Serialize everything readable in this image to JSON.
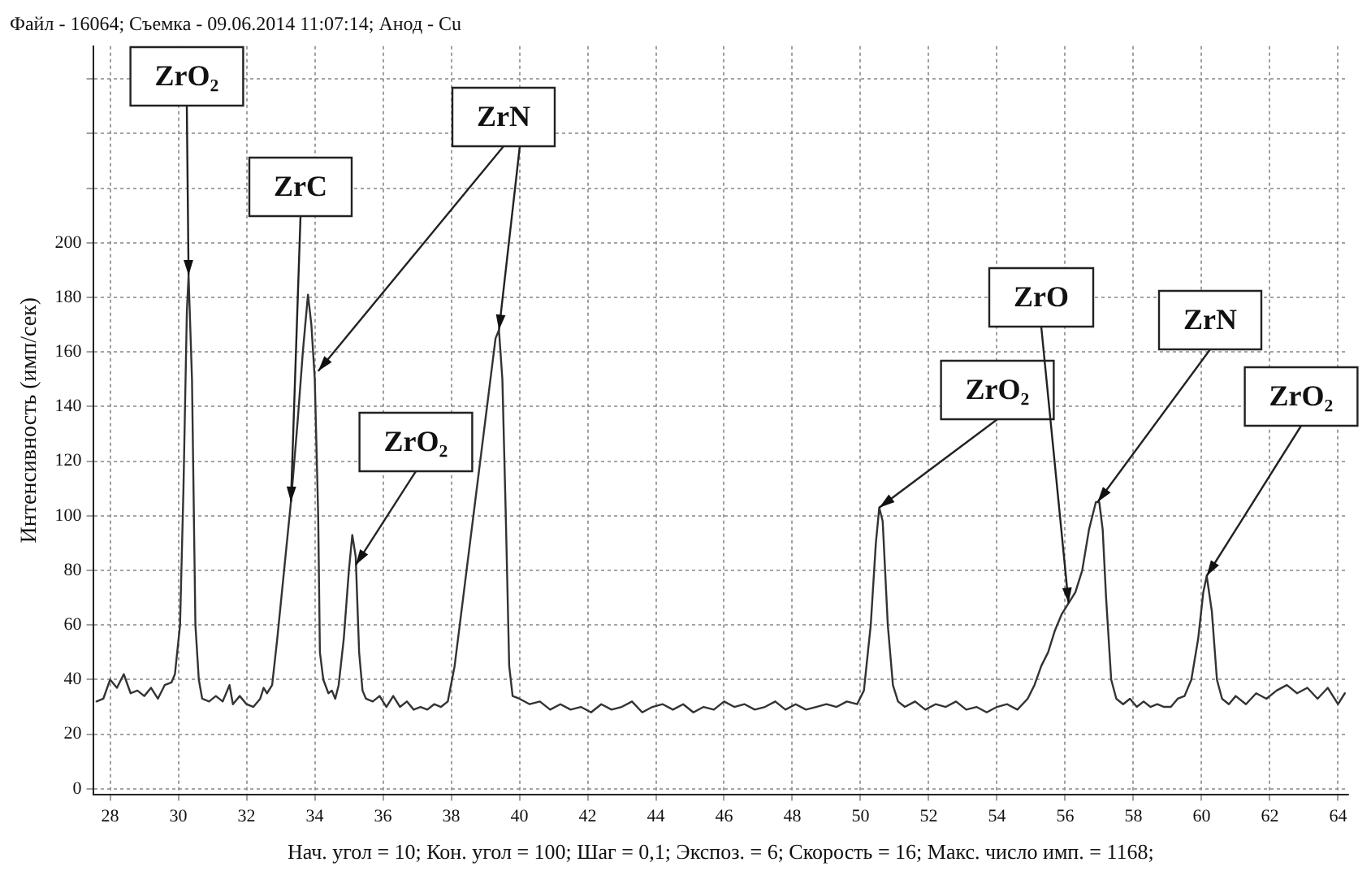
{
  "chart_data": {
    "type": "line",
    "title": "Файл - 16064; Съемка - 09.06.2014 11:07:14; Анод - Cu",
    "ylabel": "Интенсивность (имп/сек)",
    "x": [
      27.6,
      27.8,
      28.0,
      28.2,
      28.4,
      28.6,
      28.8,
      29.0,
      29.2,
      29.4,
      29.6,
      29.8,
      29.9,
      30.05,
      30.15,
      30.25,
      30.3,
      30.4,
      30.5,
      30.6,
      30.7,
      30.9,
      31.1,
      31.3,
      31.5,
      31.6,
      31.8,
      32.0,
      32.2,
      32.4,
      32.5,
      32.6,
      32.75,
      32.9,
      33.1,
      33.3,
      33.5,
      33.65,
      33.8,
      33.9,
      34.0,
      34.1,
      34.15,
      34.25,
      34.4,
      34.5,
      34.6,
      34.7,
      34.85,
      35.0,
      35.1,
      35.2,
      35.3,
      35.4,
      35.5,
      35.7,
      35.9,
      36.1,
      36.3,
      36.5,
      36.7,
      36.9,
      37.1,
      37.3,
      37.5,
      37.7,
      37.9,
      38.1,
      38.4,
      38.7,
      38.9,
      39.1,
      39.3,
      39.4,
      39.5,
      39.6,
      39.7,
      39.8,
      40.0,
      40.3,
      40.6,
      40.9,
      41.2,
      41.5,
      41.8,
      42.1,
      42.4,
      42.7,
      43.0,
      43.3,
      43.6,
      43.9,
      44.2,
      44.5,
      44.8,
      45.1,
      45.4,
      45.7,
      46.0,
      46.3,
      46.6,
      46.9,
      47.2,
      47.5,
      47.8,
      48.1,
      48.4,
      48.7,
      49.0,
      49.3,
      49.6,
      49.9,
      50.1,
      50.3,
      50.45,
      50.55,
      50.65,
      50.8,
      50.95,
      51.1,
      51.3,
      51.6,
      51.9,
      52.2,
      52.5,
      52.8,
      53.1,
      53.4,
      53.7,
      54.0,
      54.3,
      54.6,
      54.9,
      55.1,
      55.3,
      55.5,
      55.7,
      55.9,
      56.1,
      56.3,
      56.5,
      56.7,
      56.9,
      57.0,
      57.1,
      57.2,
      57.35,
      57.5,
      57.7,
      57.9,
      58.1,
      58.3,
      58.5,
      58.7,
      58.9,
      59.1,
      59.3,
      59.5,
      59.7,
      59.9,
      60.05,
      60.15,
      60.3,
      60.45,
      60.6,
      60.8,
      61.0,
      61.3,
      61.6,
      61.9,
      62.2,
      62.5,
      62.8,
      63.1,
      63.4,
      63.7,
      64.0,
      64.2
    ],
    "series": [
      {
        "color": "#333333",
        "values": [
          32,
          33,
          40,
          37,
          42,
          35,
          36,
          34,
          37,
          33,
          38,
          39,
          42,
          60,
          110,
          175,
          188,
          150,
          60,
          40,
          33,
          32,
          34,
          32,
          38,
          31,
          34,
          31,
          30,
          33,
          37,
          35,
          38,
          55,
          80,
          105,
          135,
          160,
          181,
          170,
          150,
          100,
          50,
          40,
          35,
          36,
          33,
          38,
          55,
          80,
          93,
          85,
          50,
          36,
          33,
          32,
          34,
          30,
          34,
          30,
          32,
          29,
          30,
          29,
          31,
          30,
          32,
          45,
          75,
          105,
          125,
          145,
          165,
          168,
          150,
          100,
          45,
          34,
          33,
          31,
          32,
          29,
          31,
          29,
          30,
          28,
          31,
          29,
          30,
          32,
          28,
          30,
          31,
          29,
          31,
          28,
          30,
          29,
          32,
          30,
          31,
          29,
          30,
          32,
          29,
          31,
          29,
          30,
          31,
          30,
          32,
          31,
          36,
          60,
          90,
          103,
          98,
          60,
          38,
          32,
          30,
          32,
          29,
          31,
          30,
          32,
          29,
          30,
          28,
          30,
          31,
          29,
          33,
          38,
          45,
          50,
          58,
          64,
          68,
          72,
          80,
          95,
          105,
          105,
          95,
          70,
          40,
          33,
          31,
          33,
          30,
          32,
          30,
          31,
          30,
          30,
          33,
          34,
          40,
          55,
          72,
          78,
          65,
          40,
          33,
          31,
          34,
          31,
          35,
          33,
          36,
          38,
          35,
          37,
          33,
          37,
          31,
          35
        ]
      }
    ],
    "xlim": [
      27.5,
      64.3
    ],
    "xticks": [
      28,
      30,
      32,
      34,
      36,
      38,
      40,
      42,
      44,
      46,
      48,
      50,
      52,
      54,
      56,
      58,
      60,
      62,
      64
    ],
    "ylim": [
      -2,
      272
    ],
    "yticks": [
      0,
      20,
      40,
      60,
      80,
      100,
      120,
      140,
      160,
      180,
      200,
      {
        "value": 220,
        "label": null
      },
      {
        "value": 240,
        "label": null
      },
      {
        "value": 260,
        "label": null
      }
    ],
    "grid": true,
    "legend": false,
    "marker": "none",
    "line_style": "solid",
    "annotations": [
      {
        "text": "ZrO₂",
        "x": 30.3,
        "y": 188
      },
      {
        "text": "ZrC",
        "x": 33.3,
        "y": 105
      },
      {
        "text": "ZrN",
        "x": 34.1,
        "y": 153
      },
      {
        "text": "ZrO₂",
        "x": 35.2,
        "y": 82
      },
      {
        "text": "ZrO₂",
        "x": 50.55,
        "y": 103
      },
      {
        "text": "ZrO",
        "x": 56.1,
        "y": 68
      },
      {
        "text": "ZrN",
        "x": 56.95,
        "y": 105
      },
      {
        "text": "ZrO₂",
        "x": 60.15,
        "y": 78
      },
      "Нач. угол = 10; Кон. угол = 100; Шаг = 0,1; Экспоз. = 6; Скорость = 16; Макс. число имп. = 1168;"
    ]
  }
}
